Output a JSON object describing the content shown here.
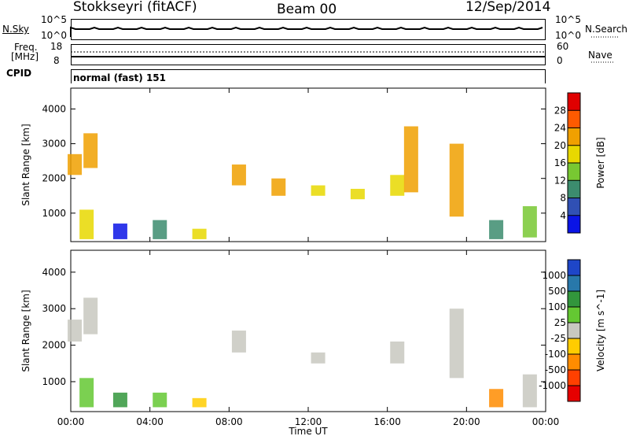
{
  "header": {
    "station": "Stokkseyri (fitACF)",
    "beam": "Beam 00",
    "date": "12/Sep/2014"
  },
  "top_panels": {
    "nsky_label": "N.Sky",
    "nsky_ticks": [
      "10^5",
      "10^0"
    ],
    "nsearch_label": "N.Search",
    "nsearch_ticks": [
      "10^5",
      "10^0"
    ],
    "freq_label_1": "Freq.",
    "freq_label_2": "[MHz]",
    "freq_ticks": [
      "18",
      "8"
    ],
    "nave_label": "Nave",
    "nave_ticks": [
      "60",
      "0"
    ],
    "cpid_label": "CPID",
    "cpid_text": "normal (fast) 151"
  },
  "chart_data": [
    {
      "type": "heatmap",
      "title": "",
      "xlabel": "Time UT",
      "ylabel": "Slant Range [km]",
      "x_tick_labels": [
        "00:00",
        "04:00",
        "08:00",
        "12:00",
        "16:00",
        "20:00",
        "00:00"
      ],
      "x_ticks_hours": [
        0,
        4,
        8,
        12,
        16,
        20,
        24
      ],
      "xlim_hours": [
        0,
        24
      ],
      "y_ticks": [
        1000,
        2000,
        3000,
        4000
      ],
      "ylim": [
        180,
        4600
      ],
      "colorbar": {
        "label": "Power [dB]",
        "tick_labels": [
          "28",
          "24",
          "20",
          "16",
          "12",
          "8",
          "4"
        ],
        "colors": [
          "#e00000",
          "#ff5a00",
          "#f0a000",
          "#e8d800",
          "#78c832",
          "#3c8c6e",
          "#3050b4",
          "#0a14e6"
        ]
      },
      "features": [
        {
          "t": 0.2,
          "r_min": 2100,
          "r_max": 2700,
          "level": 2
        },
        {
          "t": 1.0,
          "r_min": 2300,
          "r_max": 3300,
          "level": 2
        },
        {
          "t": 0.8,
          "r_min": 250,
          "r_max": 1100,
          "level": 3
        },
        {
          "t": 2.5,
          "r_min": 250,
          "r_max": 700,
          "level": 7
        },
        {
          "t": 4.5,
          "r_min": 250,
          "r_max": 800,
          "level": 5
        },
        {
          "t": 6.5,
          "r_min": 250,
          "r_max": 550,
          "level": 3
        },
        {
          "t": 8.5,
          "r_min": 1800,
          "r_max": 2400,
          "level": 2
        },
        {
          "t": 10.5,
          "r_min": 1500,
          "r_max": 2000,
          "level": 2
        },
        {
          "t": 12.5,
          "r_min": 1500,
          "r_max": 1800,
          "level": 3
        },
        {
          "t": 14.5,
          "r_min": 1400,
          "r_max": 1700,
          "level": 3
        },
        {
          "t": 16.5,
          "r_min": 1500,
          "r_max": 2100,
          "level": 3
        },
        {
          "t": 17.2,
          "r_min": 1600,
          "r_max": 3500,
          "level": 2
        },
        {
          "t": 19.5,
          "r_min": 900,
          "r_max": 3000,
          "level": 2
        },
        {
          "t": 21.5,
          "r_min": 250,
          "r_max": 800,
          "level": 5
        },
        {
          "t": 23.2,
          "r_min": 300,
          "r_max": 1200,
          "level": 4
        }
      ]
    },
    {
      "type": "heatmap",
      "title": "",
      "xlabel": "Time UT",
      "ylabel": "Slant Range [km]",
      "x_tick_labels": [
        "00:00",
        "04:00",
        "08:00",
        "12:00",
        "16:00",
        "20:00",
        "00:00"
      ],
      "x_ticks_hours": [
        0,
        4,
        8,
        12,
        16,
        20,
        24
      ],
      "xlim_hours": [
        0,
        24
      ],
      "y_ticks": [
        1000,
        2000,
        3000,
        4000
      ],
      "ylim": [
        180,
        4600
      ],
      "colorbar": {
        "label": "Velocity [m s^-1]",
        "tick_labels": [
          "1000",
          "500",
          "100",
          "25",
          "-25",
          "-100",
          "-500",
          "-1000"
        ],
        "colors": [
          "#1e46c8",
          "#2878aa",
          "#32963c",
          "#64c832",
          "#c8c8c0",
          "#ffcc00",
          "#ff8c00",
          "#ff4000",
          "#e60000"
        ]
      },
      "features": [
        {
          "t": 0.2,
          "r_min": 2100,
          "r_max": 2700,
          "level": 4
        },
        {
          "t": 1.0,
          "r_min": 2300,
          "r_max": 3300,
          "level": 4
        },
        {
          "t": 0.8,
          "r_min": 300,
          "r_max": 1100,
          "level": 3
        },
        {
          "t": 2.5,
          "r_min": 300,
          "r_max": 700,
          "level": 2
        },
        {
          "t": 4.5,
          "r_min": 300,
          "r_max": 700,
          "level": 3
        },
        {
          "t": 6.5,
          "r_min": 300,
          "r_max": 550,
          "level": 5
        },
        {
          "t": 8.5,
          "r_min": 1800,
          "r_max": 2400,
          "level": 4
        },
        {
          "t": 12.5,
          "r_min": 1500,
          "r_max": 1800,
          "level": 4
        },
        {
          "t": 16.5,
          "r_min": 1500,
          "r_max": 2100,
          "level": 4
        },
        {
          "t": 19.5,
          "r_min": 1100,
          "r_max": 3000,
          "level": 4
        },
        {
          "t": 21.5,
          "r_min": 300,
          "r_max": 800,
          "level": 6
        },
        {
          "t": 23.2,
          "r_min": 300,
          "r_max": 1200,
          "level": 4
        }
      ]
    }
  ]
}
